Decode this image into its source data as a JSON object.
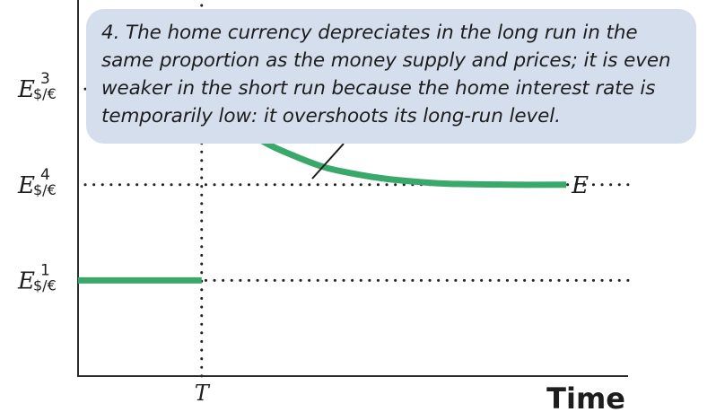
{
  "chart_data": {
    "type": "line",
    "title": "",
    "xlabel": "Time",
    "ylabel": "",
    "x_ticks": [
      {
        "label": "T",
        "x": 1
      }
    ],
    "y_ticks": [
      {
        "symbol": "E",
        "superscript": "3",
        "subscript": "$/€",
        "level": 3
      },
      {
        "symbol": "E",
        "superscript": "4",
        "subscript": "$/€",
        "level": 2
      },
      {
        "symbol": "E",
        "superscript": "1",
        "subscript": "$/€",
        "level": 1
      }
    ],
    "xlim": [
      0,
      4.45
    ],
    "ylim": [
      0,
      3.93
    ],
    "grid": false,
    "reference_lines": {
      "horizontal": [
        3,
        2,
        1
      ],
      "vertical": [
        1
      ]
    },
    "series": [
      {
        "name": "E",
        "segments": [
          [
            [
              0,
              1
            ],
            [
              1,
              1
            ]
          ],
          [
            [
              1,
              3
            ],
            [
              1.25,
              2.69
            ],
            [
              1.5,
              2.45
            ],
            [
              1.75,
              2.3
            ],
            [
              2.0,
              2.18
            ],
            [
              2.25,
              2.11
            ],
            [
              2.5,
              2.06
            ],
            [
              2.75,
              2.03
            ],
            [
              3.0,
              2.01
            ],
            [
              3.5,
              2.0
            ],
            [
              3.95,
              2.0
            ]
          ]
        ],
        "color": "#3aa86b"
      }
    ],
    "annotation": "4. The home currency depreciates in the long run in the same proportion as the money supply and prices; it is even weaker in the short run because the home interest rate is temporarily low: it overshoots its long-run level."
  }
}
